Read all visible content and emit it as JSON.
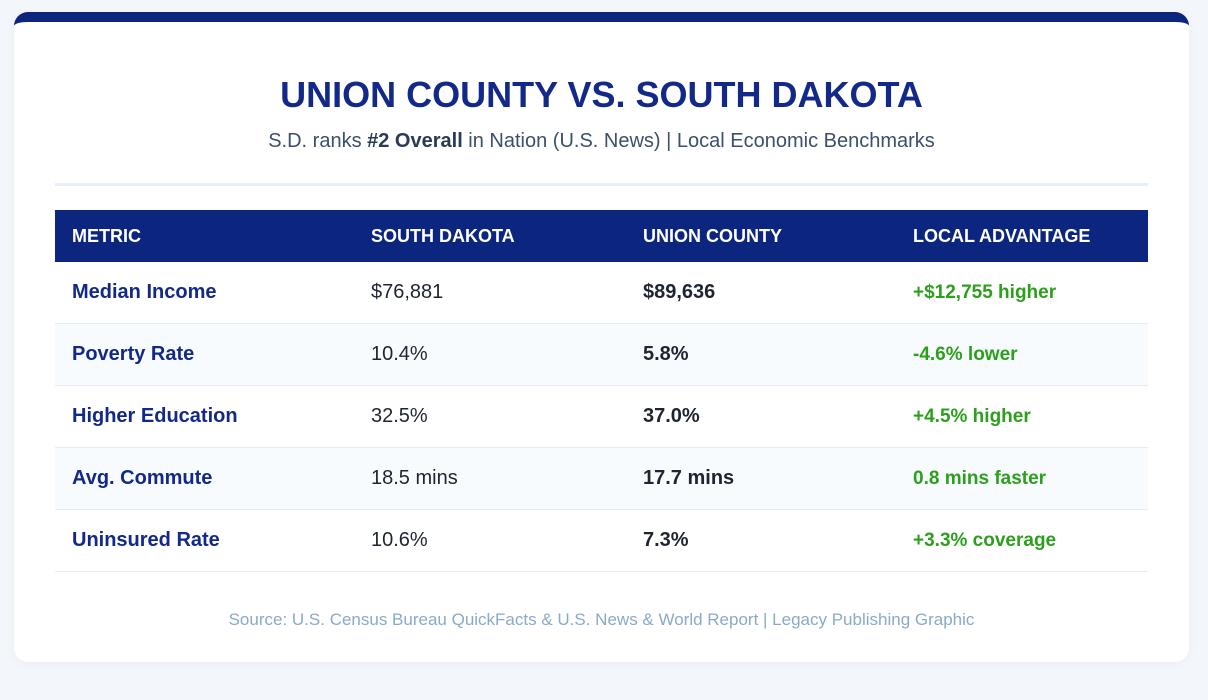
{
  "header": {
    "title": "UNION COUNTY VS. SOUTH DAKOTA",
    "subtitle": {
      "before": "S.D. ranks ",
      "bold": "#2 Overall",
      "after": " in Nation (U.S. News) | Local Economic Benchmarks"
    }
  },
  "table": {
    "columns": [
      "METRIC",
      "SOUTH DAKOTA",
      "UNION COUNTY",
      "LOCAL ADVANTAGE"
    ],
    "rows": [
      [
        "Median Income",
        "$76,881",
        "$89,636",
        "+$12,755 higher"
      ],
      [
        "Poverty Rate",
        "10.4%",
        "5.8%",
        "-4.6% lower"
      ],
      [
        "Higher Education",
        "32.5%",
        "37.0%",
        "+4.5% higher"
      ],
      [
        "Avg. Commute",
        "18.5 mins",
        "17.7 mins",
        "0.8 mins faster"
      ],
      [
        "Uninsured Rate",
        "10.6%",
        "7.3%",
        "+3.3% coverage"
      ]
    ]
  },
  "footer": {
    "source": "Source: U.S. Census Bureau QuickFacts & U.S. News & World Report | Legacy Publishing Graphic"
  }
}
